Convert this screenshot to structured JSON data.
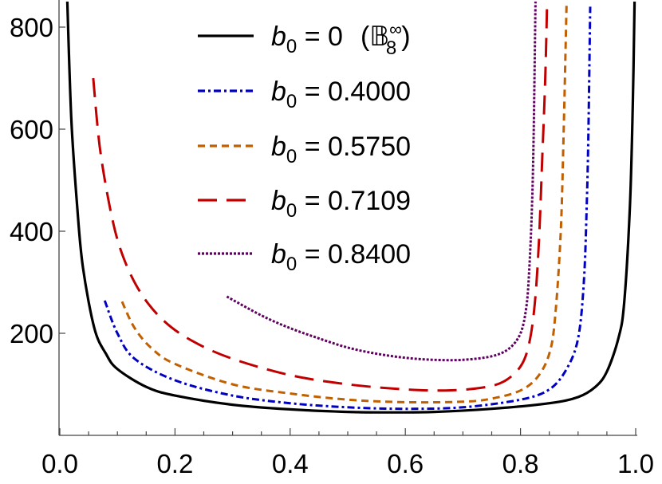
{
  "chart_data": {
    "type": "line",
    "title": "",
    "xlabel": "",
    "ylabel": "",
    "xlim": [
      0,
      1
    ],
    "ylim": [
      0,
      850
    ],
    "grid": false,
    "legend_position": "top-center",
    "x_ticks": [
      "0.0",
      "0.2",
      "0.4",
      "0.6",
      "0.8",
      "1.0"
    ],
    "x_tick_values": [
      0,
      0.2,
      0.4,
      0.6,
      0.8,
      1.0
    ],
    "x_minor_step": 0.05,
    "y_ticks": [
      "200",
      "400",
      "600",
      "800"
    ],
    "y_tick_values": [
      200,
      400,
      600,
      800
    ],
    "series": [
      {
        "name": "b0 = 0 (B8∞)",
        "legend": {
          "var": "b",
          "sub": "0",
          "eq": " = 0",
          "extra": {
            "open": "(",
            "base": "𝔹",
            "sub": "8",
            "sup": "∞",
            "close": ")"
          }
        },
        "color": "#000000",
        "style": "solid",
        "points": [
          [
            0.013,
            850
          ],
          [
            0.02,
            620
          ],
          [
            0.03,
            450
          ],
          [
            0.04,
            330
          ],
          [
            0.06,
            210
          ],
          [
            0.08,
            160
          ],
          [
            0.1,
            130
          ],
          [
            0.15,
            95
          ],
          [
            0.2,
            78
          ],
          [
            0.3,
            60
          ],
          [
            0.4,
            51
          ],
          [
            0.5,
            46
          ],
          [
            0.57,
            45
          ],
          [
            0.65,
            46
          ],
          [
            0.75,
            52
          ],
          [
            0.85,
            63
          ],
          [
            0.9,
            75
          ],
          [
            0.93,
            95
          ],
          [
            0.95,
            125
          ],
          [
            0.97,
            190
          ],
          [
            0.98,
            260
          ],
          [
            0.99,
            450
          ],
          [
            0.995,
            650
          ],
          [
            0.998,
            850
          ]
        ]
      },
      {
        "name": "b0 = 0.4000",
        "legend": {
          "var": "b",
          "sub": "0",
          "eq": " = 0.4000"
        },
        "color": "#0000c0",
        "style": "dash-dot",
        "points": [
          [
            0.078,
            264
          ],
          [
            0.1,
            200
          ],
          [
            0.13,
            150
          ],
          [
            0.2,
            108
          ],
          [
            0.3,
            78
          ],
          [
            0.4,
            63
          ],
          [
            0.5,
            55
          ],
          [
            0.6,
            52
          ],
          [
            0.7,
            55
          ],
          [
            0.8,
            70
          ],
          [
            0.85,
            90
          ],
          [
            0.88,
            130
          ],
          [
            0.9,
            190
          ],
          [
            0.91,
            300
          ],
          [
            0.915,
            450
          ],
          [
            0.918,
            600
          ],
          [
            0.921,
            840
          ]
        ]
      },
      {
        "name": "b0 = 0.5750",
        "legend": {
          "var": "b",
          "sub": "0",
          "eq": " = 0.5750"
        },
        "color": "#c06000",
        "style": "dashed",
        "points": [
          [
            0.108,
            262
          ],
          [
            0.13,
            210
          ],
          [
            0.16,
            170
          ],
          [
            0.2,
            140
          ],
          [
            0.3,
            100
          ],
          [
            0.4,
            82
          ],
          [
            0.5,
            70
          ],
          [
            0.6,
            65
          ],
          [
            0.7,
            66
          ],
          [
            0.75,
            72
          ],
          [
            0.8,
            88
          ],
          [
            0.83,
            115
          ],
          [
            0.85,
            160
          ],
          [
            0.86,
            230
          ],
          [
            0.87,
            400
          ],
          [
            0.875,
            600
          ],
          [
            0.88,
            850
          ]
        ]
      },
      {
        "name": "b0 = 0.7109",
        "legend": {
          "var": "b",
          "sub": "0",
          "eq": " = 0.7109"
        },
        "color": "#c00000",
        "style": "long-dashed",
        "points": [
          [
            0.058,
            700
          ],
          [
            0.07,
            560
          ],
          [
            0.09,
            430
          ],
          [
            0.11,
            350
          ],
          [
            0.14,
            280
          ],
          [
            0.18,
            225
          ],
          [
            0.23,
            185
          ],
          [
            0.3,
            150
          ],
          [
            0.4,
            118
          ],
          [
            0.5,
            100
          ],
          [
            0.6,
            90
          ],
          [
            0.67,
            88
          ],
          [
            0.73,
            93
          ],
          [
            0.77,
            105
          ],
          [
            0.8,
            135
          ],
          [
            0.815,
            180
          ],
          [
            0.825,
            260
          ],
          [
            0.832,
            380
          ],
          [
            0.838,
            550
          ],
          [
            0.843,
            700
          ],
          [
            0.846,
            840
          ]
        ]
      },
      {
        "name": "b0 = 0.8400",
        "legend": {
          "var": "b",
          "sub": "0",
          "eq": " = 0.8400"
        },
        "color": "#600060",
        "style": "dotted",
        "points": [
          [
            0.29,
            272
          ],
          [
            0.35,
            235
          ],
          [
            0.4,
            210
          ],
          [
            0.45,
            190
          ],
          [
            0.5,
            172
          ],
          [
            0.55,
            160
          ],
          [
            0.6,
            152
          ],
          [
            0.65,
            148
          ],
          [
            0.7,
            148
          ],
          [
            0.75,
            155
          ],
          [
            0.78,
            170
          ],
          [
            0.8,
            200
          ],
          [
            0.81,
            250
          ],
          [
            0.815,
            320
          ],
          [
            0.82,
            450
          ],
          [
            0.823,
            600
          ],
          [
            0.826,
            850
          ]
        ]
      }
    ]
  }
}
